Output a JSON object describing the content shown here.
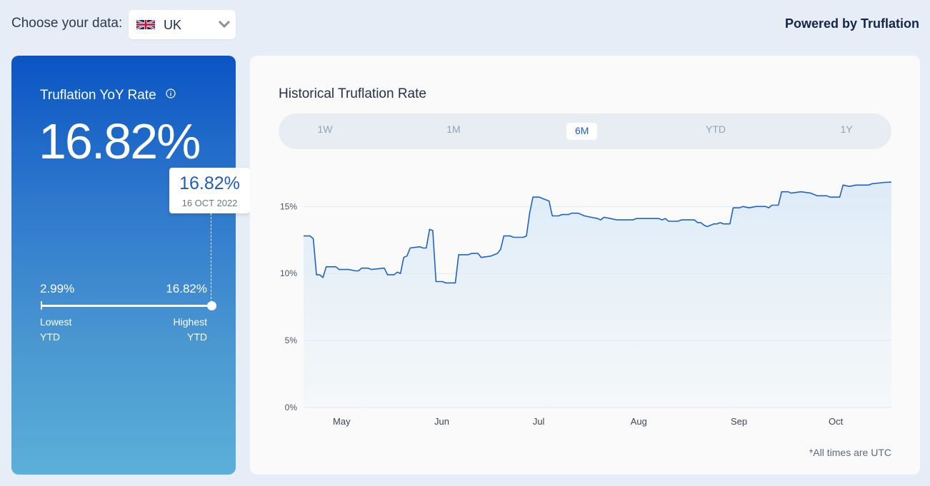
{
  "header": {
    "choose_label": "Choose your data:",
    "selected_country": "UK",
    "flag_icon": "uk-flag-icon",
    "powered_by": "Powered by Truflation"
  },
  "summary": {
    "title": "Truflation YoY Rate",
    "rate": "16.82%",
    "tooltip": {
      "value": "16.82%",
      "date": "16 OCT 2022"
    },
    "lowest_value": "2.99%",
    "highest_value": "16.82%",
    "lowest_label_1": "Lowest",
    "lowest_label_2": "YTD",
    "highest_label_1": "Highest",
    "highest_label_2": "YTD"
  },
  "history": {
    "title": "Historical Truflation Rate",
    "tabs": [
      {
        "label": "1W",
        "active": false
      },
      {
        "label": "1M",
        "active": false
      },
      {
        "label": "6M",
        "active": true
      },
      {
        "label": "YTD",
        "active": false
      },
      {
        "label": "1Y",
        "active": false
      }
    ],
    "note": "*All times are UTC"
  },
  "colors": {
    "accent": "#1e5bc6",
    "line": "#1f63c8",
    "fill": "#dcebf7",
    "card_top": "#0a55c4",
    "card_bottom": "#5bb0d8"
  },
  "chart_data": {
    "type": "area",
    "ylim": [
      0,
      18
    ],
    "yticks": [
      0,
      5,
      10,
      15
    ],
    "ytick_labels": [
      "0%",
      "5%",
      "10%",
      "15%"
    ],
    "xlim": [
      "2022-04-17",
      "2022-10-16"
    ],
    "xticks": [
      "2022-05-01",
      "2022-06-01",
      "2022-07-01",
      "2022-08-01",
      "2022-09-01",
      "2022-10-01"
    ],
    "xtick_labels": [
      "May",
      "Jun",
      "Jul",
      "Aug",
      "Sep",
      "Oct"
    ],
    "grid": true,
    "points": [
      [
        "2022-04-17",
        12.8
      ],
      [
        "2022-04-19",
        12.8
      ],
      [
        "2022-04-20",
        12.6
      ],
      [
        "2022-04-21",
        9.9
      ],
      [
        "2022-04-22",
        9.9
      ],
      [
        "2022-04-23",
        9.7
      ],
      [
        "2022-04-24",
        10.5
      ],
      [
        "2022-04-27",
        10.5
      ],
      [
        "2022-04-28",
        10.3
      ],
      [
        "2022-05-01",
        10.3
      ],
      [
        "2022-05-03",
        10.2
      ],
      [
        "2022-05-04",
        10.2
      ],
      [
        "2022-05-05",
        10.4
      ],
      [
        "2022-05-07",
        10.4
      ],
      [
        "2022-05-08",
        10.3
      ],
      [
        "2022-05-12",
        10.4
      ],
      [
        "2022-05-13",
        9.9
      ],
      [
        "2022-05-15",
        9.9
      ],
      [
        "2022-05-16",
        10.1
      ],
      [
        "2022-05-17",
        10.0
      ],
      [
        "2022-05-18",
        11.2
      ],
      [
        "2022-05-19",
        11.3
      ],
      [
        "2022-05-20",
        11.9
      ],
      [
        "2022-05-23",
        12.0
      ],
      [
        "2022-05-24",
        11.9
      ],
      [
        "2022-05-25",
        11.9
      ],
      [
        "2022-05-26",
        13.3
      ],
      [
        "2022-05-27",
        13.2
      ],
      [
        "2022-05-28",
        9.4
      ],
      [
        "2022-05-30",
        9.4
      ],
      [
        "2022-05-31",
        9.3
      ],
      [
        "2022-06-03",
        9.3
      ],
      [
        "2022-06-04",
        11.4
      ],
      [
        "2022-06-07",
        11.4
      ],
      [
        "2022-06-08",
        11.5
      ],
      [
        "2022-06-10",
        11.5
      ],
      [
        "2022-06-11",
        11.2
      ],
      [
        "2022-06-14",
        11.3
      ],
      [
        "2022-06-16",
        11.5
      ],
      [
        "2022-06-17",
        11.8
      ],
      [
        "2022-06-18",
        12.8
      ],
      [
        "2022-06-20",
        12.8
      ],
      [
        "2022-06-21",
        12.7
      ],
      [
        "2022-06-24",
        12.7
      ],
      [
        "2022-06-25",
        12.8
      ],
      [
        "2022-06-26",
        14.5
      ],
      [
        "2022-06-27",
        15.7
      ],
      [
        "2022-06-29",
        15.7
      ],
      [
        "2022-06-30",
        15.6
      ],
      [
        "2022-07-01",
        15.5
      ],
      [
        "2022-07-02",
        15.4
      ],
      [
        "2022-07-03",
        14.3
      ],
      [
        "2022-07-05",
        14.3
      ],
      [
        "2022-07-06",
        14.4
      ],
      [
        "2022-07-08",
        14.4
      ],
      [
        "2022-07-09",
        14.5
      ],
      [
        "2022-07-11",
        14.5
      ],
      [
        "2022-07-13",
        14.3
      ],
      [
        "2022-07-15",
        14.2
      ],
      [
        "2022-07-17",
        14.1
      ],
      [
        "2022-07-18",
        14.0
      ],
      [
        "2022-07-19",
        14.2
      ],
      [
        "2022-07-21",
        14.1
      ],
      [
        "2022-07-23",
        14.0
      ],
      [
        "2022-07-28",
        14.0
      ],
      [
        "2022-07-29",
        14.1
      ],
      [
        "2022-08-05",
        14.1
      ],
      [
        "2022-08-06",
        14.0
      ],
      [
        "2022-08-07",
        14.1
      ],
      [
        "2022-08-08",
        13.9
      ],
      [
        "2022-08-11",
        13.9
      ],
      [
        "2022-08-12",
        14.0
      ],
      [
        "2022-08-16",
        14.0
      ],
      [
        "2022-08-17",
        13.8
      ],
      [
        "2022-08-18",
        13.8
      ],
      [
        "2022-08-19",
        13.6
      ],
      [
        "2022-08-20",
        13.5
      ],
      [
        "2022-08-22",
        13.7
      ],
      [
        "2022-08-23",
        13.7
      ],
      [
        "2022-08-24",
        13.8
      ],
      [
        "2022-08-25",
        13.7
      ],
      [
        "2022-08-27",
        13.7
      ],
      [
        "2022-08-28",
        14.9
      ],
      [
        "2022-08-30",
        14.9
      ],
      [
        "2022-08-31",
        15.0
      ],
      [
        "2022-09-02",
        14.9
      ],
      [
        "2022-09-04",
        15.0
      ],
      [
        "2022-09-07",
        15.0
      ],
      [
        "2022-09-08",
        14.9
      ],
      [
        "2022-09-09",
        15.1
      ],
      [
        "2022-09-11",
        15.1
      ],
      [
        "2022-09-12",
        16.1
      ],
      [
        "2022-09-14",
        16.1
      ],
      [
        "2022-09-15",
        16.0
      ],
      [
        "2022-09-18",
        16.1
      ],
      [
        "2022-09-21",
        16.0
      ],
      [
        "2022-09-23",
        15.8
      ],
      [
        "2022-09-26",
        15.8
      ],
      [
        "2022-09-27",
        15.7
      ],
      [
        "2022-09-30",
        15.7
      ],
      [
        "2022-10-01",
        16.6
      ],
      [
        "2022-10-03",
        16.5
      ],
      [
        "2022-10-05",
        16.6
      ],
      [
        "2022-10-09",
        16.6
      ],
      [
        "2022-10-10",
        16.7
      ],
      [
        "2022-10-14",
        16.8
      ],
      [
        "2022-10-16",
        16.82
      ]
    ]
  }
}
